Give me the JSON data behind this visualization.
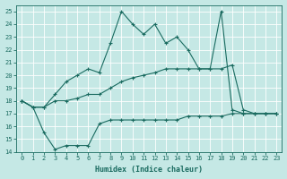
{
  "xlabel": "Humidex (Indice chaleur)",
  "xlim": [
    -0.5,
    23.5
  ],
  "ylim": [
    14,
    25.5
  ],
  "yticks": [
    14,
    15,
    16,
    17,
    18,
    19,
    20,
    21,
    22,
    23,
    24,
    25
  ],
  "xticks": [
    0,
    1,
    2,
    3,
    4,
    5,
    6,
    7,
    8,
    9,
    10,
    11,
    12,
    13,
    14,
    15,
    16,
    17,
    18,
    19,
    20,
    21,
    22,
    23
  ],
  "bg_color": "#c5e8e5",
  "line_color": "#1a6b60",
  "grid_color": "#ffffff",
  "line1_x": [
    0,
    1,
    2,
    3,
    4,
    5,
    6,
    7,
    8,
    9,
    10,
    11,
    12,
    13,
    14,
    15,
    16,
    17,
    18,
    19,
    20,
    21,
    22,
    23
  ],
  "line1_y": [
    18.0,
    17.5,
    17.5,
    18.5,
    19.5,
    20.0,
    20.5,
    20.2,
    22.5,
    25.0,
    24.0,
    23.2,
    24.0,
    22.5,
    23.0,
    22.0,
    20.5,
    20.5,
    25.0,
    17.3,
    17.0,
    17.0,
    17.0,
    17.0
  ],
  "line2_x": [
    0,
    1,
    2,
    3,
    4,
    5,
    6,
    7,
    8,
    9,
    10,
    11,
    12,
    13,
    14,
    15,
    16,
    17,
    18,
    19,
    20,
    21,
    22,
    23
  ],
  "line2_y": [
    18.0,
    17.5,
    17.5,
    18.0,
    18.0,
    18.2,
    18.5,
    18.5,
    19.0,
    19.5,
    19.8,
    20.0,
    20.2,
    20.5,
    20.5,
    20.5,
    20.5,
    20.5,
    20.5,
    20.8,
    17.3,
    17.0,
    17.0,
    17.0
  ],
  "line3_x": [
    0,
    1,
    2,
    3,
    4,
    5,
    6,
    7,
    8,
    9,
    10,
    11,
    12,
    13,
    14,
    15,
    16,
    17,
    18,
    19,
    20,
    21,
    22,
    23
  ],
  "line3_y": [
    18.0,
    17.5,
    15.5,
    14.2,
    14.5,
    14.5,
    14.5,
    16.2,
    16.5,
    16.5,
    16.5,
    16.5,
    16.5,
    16.5,
    16.5,
    16.8,
    16.8,
    16.8,
    16.8,
    17.0,
    17.0,
    17.0,
    17.0,
    17.0
  ]
}
